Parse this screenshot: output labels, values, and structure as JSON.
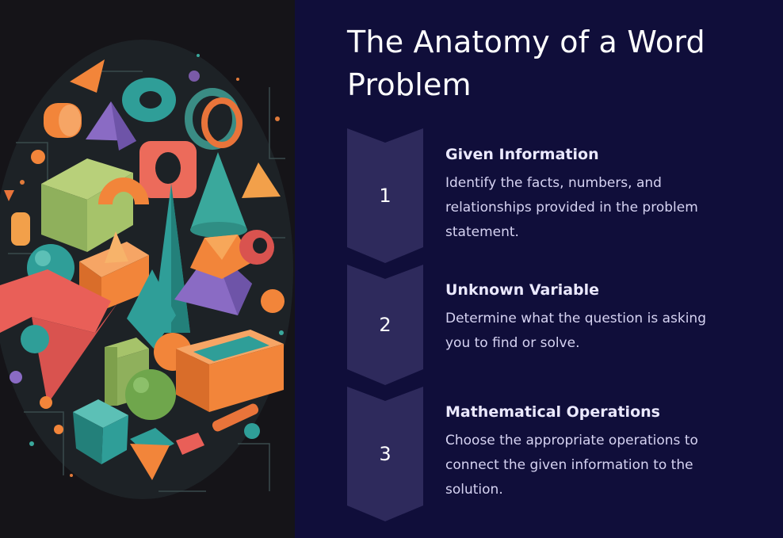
{
  "title": "The Anatomy of a Word Problem",
  "art": {
    "description_icon": "geometric-shapes-illustration"
  },
  "steps": [
    {
      "number": "1",
      "title": "Given Information",
      "description": "Identify the facts, numbers, and relationships provided in the problem statement."
    },
    {
      "number": "2",
      "title": "Unknown Variable",
      "description": "Determine what the question is asking you to find or solve."
    },
    {
      "number": "3",
      "title": "Mathematical Operations",
      "description": "Choose the appropriate operations to connect the given information to the solution."
    }
  ],
  "colors": {
    "background": "#100e3a",
    "chevron": "#2e2a5c",
    "art_background": "#151418"
  }
}
